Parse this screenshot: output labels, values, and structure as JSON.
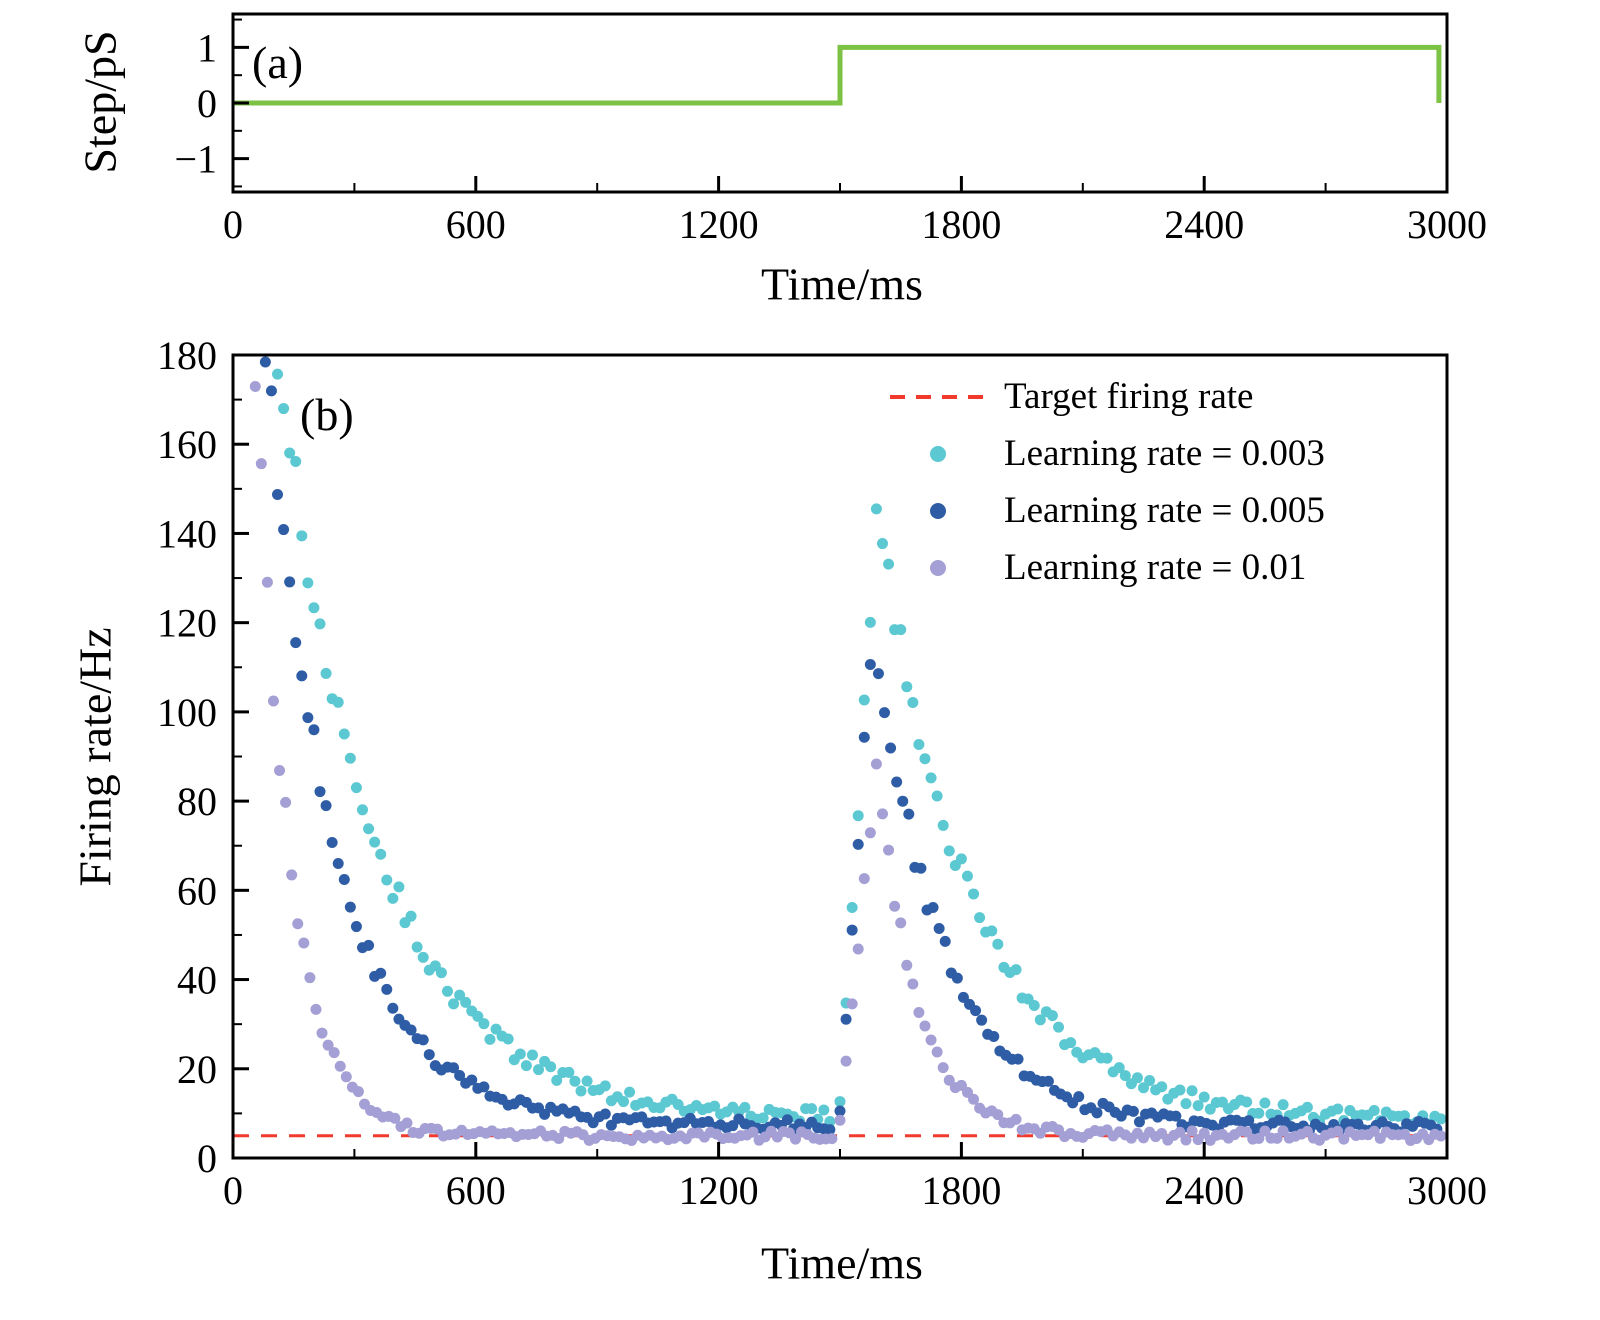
{
  "figure": {
    "panels": {
      "a": {
        "label": "(a)",
        "xlabel": "Time/ms",
        "ylabel": "Step/pS"
      },
      "b": {
        "label": "(b)",
        "xlabel": "Time/ms",
        "ylabel": "Firing rate/Hz"
      }
    }
  },
  "colors": {
    "axis": "#000000",
    "step_line": "#7cc244",
    "target_line": "#f1392c",
    "learning_rate_0_003": "#5bc8d2",
    "learning_rate_0_005": "#2e5da6",
    "learning_rate_0_01": "#a49fd4"
  },
  "chart_data": [
    {
      "id": "a",
      "type": "line",
      "title": "",
      "xlabel": "Time/ms",
      "ylabel": "Step/pS",
      "xlim": [
        0,
        3000
      ],
      "ylim": [
        -1.6,
        1.6
      ],
      "xticks": [
        0,
        600,
        1200,
        1800,
        2400,
        3000
      ],
      "xminor": 300,
      "yticks": [
        -1,
        0,
        1
      ],
      "yminor": 0.5,
      "grid": false,
      "series": [
        {
          "name": "step stimulus",
          "color": "#7cc244",
          "width": 5,
          "points": [
            [
              0,
              0
            ],
            [
              1500,
              0
            ],
            [
              1500,
              1
            ],
            [
              2980,
              1
            ],
            [
              2980,
              0
            ]
          ]
        }
      ]
    },
    {
      "id": "b",
      "type": "scatter",
      "title": "",
      "xlabel": "Time/ms",
      "ylabel": "Firing rate/Hz",
      "xlim": [
        0,
        3000
      ],
      "ylim": [
        0,
        180
      ],
      "xticks": [
        0,
        600,
        1200,
        1800,
        2400,
        3000
      ],
      "xminor": 300,
      "yticks": [
        0,
        20,
        40,
        60,
        80,
        100,
        120,
        140,
        160,
        180
      ],
      "yminor": 10,
      "grid": false,
      "legend_position": "upper right",
      "target_line": {
        "y": 5,
        "color": "#f1392c",
        "label": "Target firing rate"
      },
      "sample_interval_ms": 15,
      "series": [
        {
          "name": "Learning rate = 0.003",
          "color": "#5bc8d2",
          "marker_radius": 5.5,
          "noise": 1.2,
          "segments": [
            {
              "kind": "decay",
              "t0": 110,
              "t1": 1485,
              "floor": 9,
              "amp": 171,
              "tau": 240,
              "tref": 110,
              "note": "decays from 180 Hz to ~10 Hz floor"
            },
            {
              "kind": "rise",
              "t0": 1500,
              "t1": 1590,
              "y0": 12,
              "y1": 145,
              "note": "spike after step, peak ~145 Hz"
            },
            {
              "kind": "decay",
              "t0": 1605,
              "t1": 2985,
              "floor": 8.5,
              "amp": 136.5,
              "tau": 235,
              "tref": 1590,
              "note": "decays back to ~8-9 Hz"
            }
          ]
        },
        {
          "name": "Learning rate = 0.005",
          "color": "#2e5da6",
          "marker_radius": 5.5,
          "noise": 1.0,
          "segments": [
            {
              "kind": "decay",
              "t0": 80,
              "t1": 1485,
              "floor": 7.5,
              "amp": 172.5,
              "tau": 170,
              "tref": 80,
              "note": "decays from 180 Hz to ~7.5 Hz floor"
            },
            {
              "kind": "rise",
              "t0": 1500,
              "t1": 1580,
              "y0": 10,
              "y1": 120,
              "note": "spike after step, peak ~120 Hz"
            },
            {
              "kind": "decay",
              "t0": 1595,
              "t1": 2985,
              "floor": 7,
              "amp": 113,
              "tau": 170,
              "tref": 1580,
              "note": "decays back to ~7 Hz"
            }
          ]
        },
        {
          "name": "Learning rate = 0.01",
          "color": "#a49fd4",
          "marker_radius": 5.5,
          "noise": 0.9,
          "segments": [
            {
              "kind": "decay",
              "t0": 55,
              "t1": 1485,
              "floor": 5,
              "amp": 173,
              "tau": 85,
              "tref": 55,
              "note": "decays from ~178 Hz to 5 Hz target"
            },
            {
              "kind": "rise",
              "t0": 1500,
              "t1": 1590,
              "y0": 8,
              "y1": 88,
              "note": "spike after step, peak ~88 Hz"
            },
            {
              "kind": "decay",
              "t0": 1605,
              "t1": 2985,
              "floor": 5,
              "amp": 83,
              "tau": 100,
              "tref": 1590,
              "note": "decays back to 5 Hz target"
            }
          ]
        }
      ],
      "legend": [
        {
          "marker": "dash",
          "color": "#f1392c",
          "label": "Target firing rate"
        },
        {
          "marker": "dot",
          "color": "#5bc8d2",
          "label": "Learning rate = 0.003"
        },
        {
          "marker": "dot",
          "color": "#2e5da6",
          "label": "Learning rate = 0.005"
        },
        {
          "marker": "dot",
          "color": "#a49fd4",
          "label": "Learning rate = 0.01"
        }
      ]
    }
  ]
}
